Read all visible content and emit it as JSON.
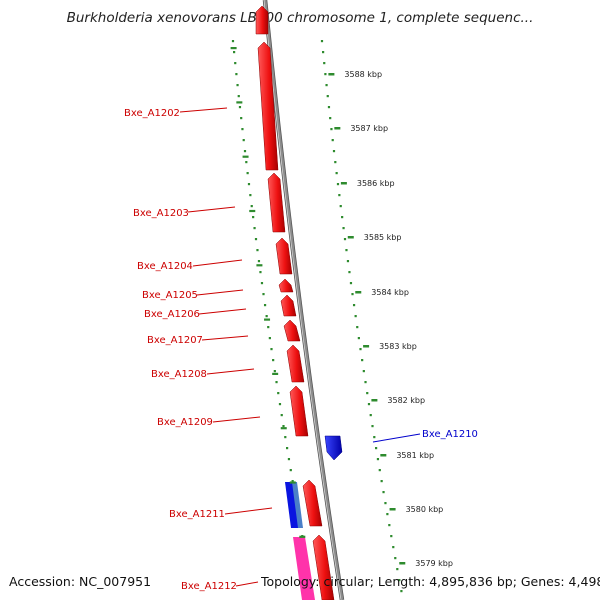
{
  "title": "Burkholderia xenovorans LB400 chromosome 1, complete sequenc...",
  "footer": {
    "accession": "Accession: NC_007951",
    "topology": "Topology: circular; Length: 4,895,836 bp; Genes: 4,498"
  },
  "colors": {
    "forward_gene": "#ee1111",
    "reverse_gene": "#0a14e0",
    "other_gene": "#4a7fc8",
    "pink_gene": "#ff33aa",
    "backbone": "#8c8c8c",
    "tick": "#2e8b2e",
    "label_red": "#cc0000",
    "label_blue": "#0000cc"
  },
  "kbp_ticks": [
    {
      "label": "3588 kbp"
    },
    {
      "label": "3587 kbp"
    },
    {
      "label": "3586 kbp"
    },
    {
      "label": "3585 kbp"
    },
    {
      "label": "3584 kbp"
    },
    {
      "label": "3583 kbp"
    },
    {
      "label": "3582 kbp"
    },
    {
      "label": "3581 kbp"
    },
    {
      "label": "3580 kbp"
    },
    {
      "label": "3579 kbp"
    }
  ],
  "gene_labels": [
    {
      "name": "Bxe_A1202",
      "strand": "forward"
    },
    {
      "name": "Bxe_A1203",
      "strand": "forward"
    },
    {
      "name": "Bxe_A1204",
      "strand": "forward"
    },
    {
      "name": "Bxe_A1205",
      "strand": "forward"
    },
    {
      "name": "Bxe_A1206",
      "strand": "forward"
    },
    {
      "name": "Bxe_A1207",
      "strand": "forward"
    },
    {
      "name": "Bxe_A1208",
      "strand": "forward"
    },
    {
      "name": "Bxe_A1209",
      "strand": "forward"
    },
    {
      "name": "Bxe_A1210",
      "strand": "reverse"
    },
    {
      "name": "Bxe_A1211",
      "strand": "forward"
    },
    {
      "name": "Bxe_A1212",
      "strand": "forward"
    }
  ]
}
